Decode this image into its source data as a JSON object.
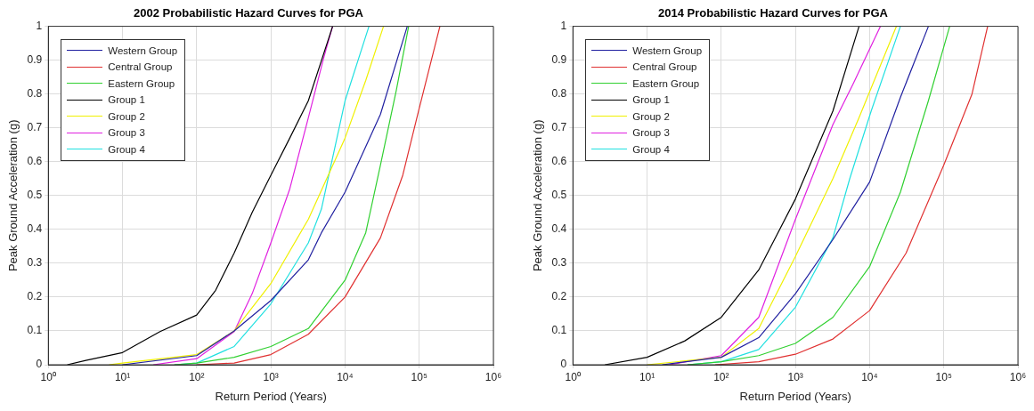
{
  "chart_data": [
    {
      "type": "line",
      "title": "2002 Probabilistic Hazard Curves for PGA",
      "xlabel": "Return Period (Years)",
      "ylabel": "Peak Ground Acceleration (g)",
      "log": "x",
      "grid": true,
      "legend": "top left",
      "marker": "none",
      "line_style": "solid",
      "xlim": [
        1,
        1000000
      ],
      "xticks": [
        {
          "value": 1,
          "label": "10⁰"
        },
        {
          "value": 10,
          "label": "10¹"
        },
        {
          "value": 100,
          "label": "10²"
        },
        {
          "value": 1000,
          "label": "10³"
        },
        {
          "value": 10000,
          "label": "10⁴"
        },
        {
          "value": 100000,
          "label": "10⁵"
        },
        {
          "value": 1000000,
          "label": "10⁶"
        }
      ],
      "ylim": [
        0,
        1
      ],
      "yticks": [
        0,
        0.1,
        0.2,
        0.3,
        0.4,
        0.5,
        0.6,
        0.7,
        0.8,
        0.9,
        1
      ],
      "series": [
        {
          "name": "Western Group",
          "color": "#2020a0",
          "x": [
            10,
            100,
            320,
            1000,
            3200,
            4800,
            10000,
            30000,
            69000
          ],
          "values": [
            0,
            0.027,
            0.1,
            0.19,
            0.31,
            0.39,
            0.51,
            0.74,
            1
          ]
        },
        {
          "name": "Central Group",
          "color": "#e03030",
          "x": [
            100,
            320,
            1000,
            3200,
            10000,
            30000,
            60000,
            98000,
            190000
          ],
          "values": [
            0,
            0.005,
            0.03,
            0.09,
            0.2,
            0.375,
            0.56,
            0.75,
            1
          ]
        },
        {
          "name": "Eastern Group",
          "color": "#30d030",
          "x": [
            50,
            100,
            320,
            1000,
            3200,
            10000,
            19000,
            30000,
            49000,
            72000
          ],
          "values": [
            0,
            0.005,
            0.022,
            0.054,
            0.107,
            0.25,
            0.39,
            0.59,
            0.81,
            1
          ]
        },
        {
          "name": "Group 1",
          "color": "#000000",
          "x": [
            1.8,
            3.2,
            10,
            32,
            100,
            180,
            320,
            560,
            1000,
            1800,
            3200,
            6800
          ],
          "values": [
            0,
            0.013,
            0.036,
            0.098,
            0.147,
            0.22,
            0.33,
            0.45,
            0.56,
            0.67,
            0.78,
            1
          ]
        },
        {
          "name": "Group 2",
          "color": "#f0f000",
          "x": [
            6.6,
            10,
            100,
            320,
            1000,
            3200,
            10000,
            19000,
            33000
          ],
          "values": [
            0,
            0.005,
            0.03,
            0.1,
            0.24,
            0.43,
            0.67,
            0.84,
            1
          ]
        },
        {
          "name": "Group 3",
          "color": "#e020e0",
          "x": [
            26,
            100,
            320,
            560,
            1000,
            1800,
            3200,
            5200,
            6800
          ],
          "values": [
            0,
            0.018,
            0.098,
            0.21,
            0.36,
            0.52,
            0.73,
            0.91,
            1
          ]
        },
        {
          "name": "Group 4",
          "color": "#20e0e0",
          "x": [
            50,
            100,
            320,
            1000,
            3200,
            4800,
            10000,
            21000
          ],
          "values": [
            0,
            0.005,
            0.054,
            0.18,
            0.36,
            0.46,
            0.78,
            1
          ]
        }
      ]
    },
    {
      "type": "line",
      "title": "2014 Probabilistic Hazard Curves for PGA",
      "xlabel": "Return Period (Years)",
      "ylabel": "Peak Ground Acceleration (g)",
      "log": "x",
      "grid": true,
      "legend": "top left",
      "marker": "none",
      "line_style": "solid",
      "xlim": [
        1,
        1000000
      ],
      "xticks": [
        {
          "value": 1,
          "label": "10⁰"
        },
        {
          "value": 10,
          "label": "10¹"
        },
        {
          "value": 100,
          "label": "10²"
        },
        {
          "value": 1000,
          "label": "10³"
        },
        {
          "value": 10000,
          "label": "10⁴"
        },
        {
          "value": 100000,
          "label": "10⁵"
        },
        {
          "value": 1000000,
          "label": "10⁶"
        }
      ],
      "ylim": [
        0,
        1
      ],
      "yticks": [
        0,
        0.1,
        0.2,
        0.3,
        0.4,
        0.5,
        0.6,
        0.7,
        0.8,
        0.9,
        1
      ],
      "series": [
        {
          "name": "Western Group",
          "color": "#2020a0",
          "x": [
            16,
            100,
            320,
            1000,
            3200,
            10000,
            26000,
            62000
          ],
          "values": [
            0,
            0.022,
            0.08,
            0.21,
            0.37,
            0.54,
            0.79,
            1
          ]
        },
        {
          "name": "Central Group",
          "color": "#e03030",
          "x": [
            83,
            320,
            1000,
            3200,
            10000,
            31000,
            100000,
            240000,
            390000
          ],
          "values": [
            0,
            0.009,
            0.031,
            0.076,
            0.16,
            0.33,
            0.59,
            0.8,
            1
          ]
        },
        {
          "name": "Eastern Group",
          "color": "#30d030",
          "x": [
            35,
            100,
            320,
            1000,
            3200,
            10000,
            26000,
            62000,
            120000
          ],
          "values": [
            0,
            0.009,
            0.027,
            0.063,
            0.14,
            0.29,
            0.51,
            0.78,
            1
          ]
        },
        {
          "name": "Group 1",
          "color": "#000000",
          "x": [
            2.7,
            10,
            32,
            100,
            320,
            1000,
            3200,
            7200
          ],
          "values": [
            0,
            0.022,
            0.07,
            0.14,
            0.28,
            0.49,
            0.75,
            1
          ]
        },
        {
          "name": "Group 2",
          "color": "#f0f000",
          "x": [
            10,
            100,
            320,
            1000,
            3200,
            7200,
            23000
          ],
          "values": [
            0,
            0.022,
            0.107,
            0.32,
            0.55,
            0.73,
            1
          ]
        },
        {
          "name": "Group 3",
          "color": "#e020e0",
          "x": [
            20,
            100,
            320,
            1000,
            3200,
            6000,
            14000
          ],
          "values": [
            0,
            0.027,
            0.14,
            0.43,
            0.71,
            0.83,
            1
          ]
        },
        {
          "name": "Group 4",
          "color": "#20e0e0",
          "x": [
            35,
            100,
            320,
            1000,
            3200,
            5400,
            10500,
            26000
          ],
          "values": [
            0,
            0.009,
            0.045,
            0.17,
            0.375,
            0.55,
            0.75,
            1
          ]
        }
      ]
    }
  ]
}
